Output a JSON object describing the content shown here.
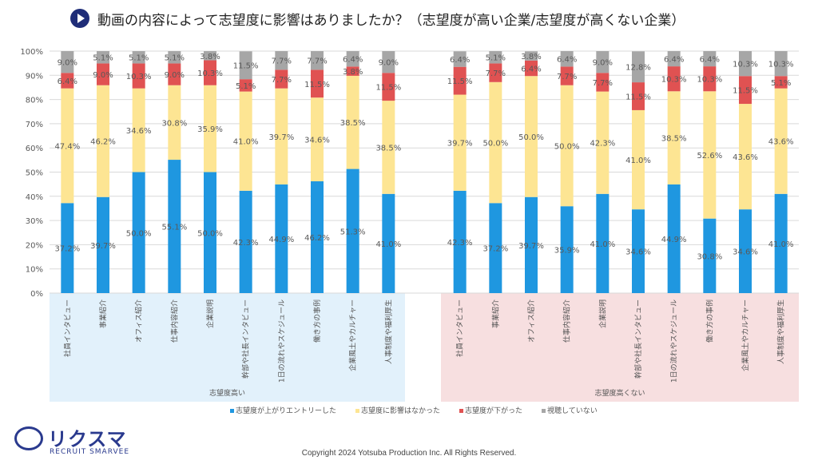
{
  "title": "動画の内容によって志望度に影響はありましたか？（志望度が高い企業/志望度が高くない企業）",
  "colors": {
    "entry": "#1f97e0",
    "none": "#fde593",
    "down": "#e05252",
    "not_watched": "#a6a6a6",
    "group1_bg": "#e2f1fb",
    "group2_bg": "#f7dfe0"
  },
  "chart_data": {
    "type": "bar",
    "stacked": true,
    "percent": true,
    "ylim": [
      0,
      100
    ],
    "yticks": [
      "0%",
      "10%",
      "20%",
      "30%",
      "40%",
      "50%",
      "60%",
      "70%",
      "80%",
      "90%",
      "100%"
    ],
    "grid": true,
    "legend_position": "bottom",
    "series_names": [
      "志望度が上がりエントリーした",
      "志望度に影響はなかった",
      "志望度が下がった",
      "視聴していない"
    ],
    "groups": [
      {
        "label": "志望度高い",
        "categories": [
          "社員インタビュー",
          "事業紹介",
          "オフィス紹介",
          "仕事内容紹介",
          "企業説明",
          "幹部や社長インタビュー",
          "1日の流れやスケジュール",
          "働き方の事例",
          "企業風土やカルチャー",
          "人事制度や福利厚生"
        ],
        "series": [
          [
            37.2,
            39.7,
            50.0,
            55.1,
            50.0,
            42.3,
            44.9,
            46.2,
            51.3,
            41.0
          ],
          [
            47.4,
            46.2,
            34.6,
            30.8,
            35.9,
            41.0,
            39.7,
            34.6,
            38.5,
            38.5
          ],
          [
            6.4,
            9.0,
            10.3,
            9.0,
            10.3,
            5.1,
            7.7,
            11.5,
            3.8,
            11.5
          ],
          [
            9.0,
            5.1,
            5.1,
            5.1,
            3.8,
            11.5,
            7.7,
            7.7,
            6.4,
            9.0
          ]
        ]
      },
      {
        "label": "志望度高くない",
        "categories": [
          "社員インタビュー",
          "事業紹介",
          "オフィス紹介",
          "仕事内容紹介",
          "企業説明",
          "幹部や社長インタビュー",
          "1日の流れやスケジュール",
          "働き方の事例",
          "企業風土やカルチャー",
          "人事制度や福利厚生"
        ],
        "series": [
          [
            42.3,
            37.2,
            39.7,
            35.9,
            41.0,
            34.6,
            44.9,
            30.8,
            34.6,
            41.0
          ],
          [
            39.7,
            50.0,
            50.0,
            50.0,
            42.3,
            41.0,
            38.5,
            52.6,
            43.6,
            43.6
          ],
          [
            11.5,
            7.7,
            6.4,
            7.7,
            7.7,
            11.5,
            10.3,
            10.3,
            11.5,
            5.1
          ],
          [
            6.4,
            5.1,
            3.8,
            6.4,
            9.0,
            12.8,
            6.4,
            6.4,
            10.3,
            10.3
          ]
        ]
      }
    ]
  },
  "logo": {
    "kana": "リクスマ",
    "en": "RECRUIT SMARVEE"
  },
  "copyright": "Copyright 2024  Yotsuba  Production  Inc.   All  Rights  Reserved."
}
